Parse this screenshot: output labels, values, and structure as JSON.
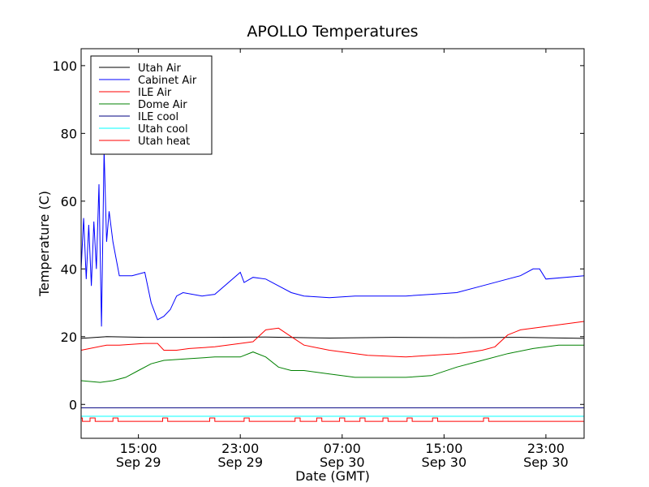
{
  "chart_data": {
    "type": "line",
    "title": "APOLLO Temperatures",
    "xlabel": "Date (GMT)",
    "ylabel": "Temperature (C)",
    "xlim": [
      10.5,
      50.0
    ],
    "ylim": [
      -10,
      105
    ],
    "yticks": [
      0,
      20,
      40,
      60,
      80,
      100
    ],
    "xticks": [
      {
        "x": 15,
        "time": "15:00",
        "date": "Sep 29"
      },
      {
        "x": 23,
        "time": "23:00",
        "date": "Sep 29"
      },
      {
        "x": 31,
        "time": "07:00",
        "date": "Sep 30"
      },
      {
        "x": 39,
        "time": "15:00",
        "date": "Sep 30"
      },
      {
        "x": 47,
        "time": "23:00",
        "date": "Sep 30"
      }
    ],
    "legend_position": "upper-left",
    "series": [
      {
        "name": "Utah Air",
        "color": "#000000",
        "x": [
          10.5,
          12.5,
          15.5,
          20,
          25,
          30,
          35,
          40,
          45,
          50
        ],
        "y": [
          19.5,
          20.0,
          19.8,
          19.8,
          19.9,
          19.6,
          19.8,
          19.7,
          19.8,
          19.5
        ]
      },
      {
        "name": "Cabinet Air",
        "color": "#0000ff",
        "x": [
          10.5,
          10.7,
          10.9,
          11.1,
          11.3,
          11.5,
          11.7,
          11.9,
          12.1,
          12.3,
          12.5,
          12.7,
          13.0,
          13.5,
          14.5,
          15.5,
          16.0,
          16.5,
          17.0,
          17.5,
          18.0,
          18.5,
          20.0,
          21.0,
          23.0,
          23.3,
          24.0,
          25.0,
          26.0,
          27.0,
          28.0,
          30.0,
          32.0,
          34.0,
          36.0,
          38.0,
          40.0,
          42.0,
          44.0,
          45.0,
          46.0,
          46.5,
          47.0,
          50.0
        ],
        "y": [
          40,
          55,
          37,
          53,
          35,
          54,
          40,
          65,
          23,
          75,
          48,
          57,
          48,
          38,
          38,
          39,
          30,
          25,
          26,
          28,
          32,
          33,
          32,
          32.5,
          39,
          36,
          37.5,
          37,
          35,
          33,
          32,
          31.5,
          32,
          32,
          32,
          32.5,
          33,
          35,
          37,
          38,
          40,
          40,
          37,
          38
        ]
      },
      {
        "name": "ILE Air",
        "color": "#ff0000",
        "x": [
          10.5,
          12.5,
          13.5,
          15.5,
          16.5,
          17.0,
          18.0,
          19.0,
          21.0,
          23.0,
          24.0,
          25.0,
          26.0,
          27.0,
          28.0,
          30.0,
          33.0,
          36.0,
          38.0,
          40.0,
          42.0,
          43.0,
          44.0,
          45.0,
          47.0,
          50.0
        ],
        "y": [
          16,
          17.5,
          17.5,
          18,
          18,
          16,
          16,
          16.5,
          17,
          18,
          18.5,
          22,
          22.5,
          20,
          17.5,
          16,
          14.5,
          14,
          14.5,
          15,
          16,
          17,
          20.5,
          22,
          23,
          24.5
        ]
      },
      {
        "name": "Dome Air",
        "color": "#008000",
        "x": [
          10.5,
          12.0,
          13.0,
          14.0,
          15.0,
          16.0,
          17.0,
          19.0,
          21.0,
          23.0,
          24.0,
          25.0,
          26.0,
          27.0,
          28.0,
          30.0,
          32.0,
          34.0,
          36.0,
          38.0,
          40.0,
          42.0,
          44.0,
          46.0,
          48.0,
          50.0
        ],
        "y": [
          7,
          6.5,
          7,
          8,
          10,
          12,
          13,
          13.5,
          14,
          14,
          15.5,
          14,
          11,
          10,
          10,
          9,
          8,
          8,
          8,
          8.5,
          11,
          13,
          15,
          16.5,
          17.5,
          17.5
        ]
      },
      {
        "name": "ILE cool",
        "color": "#000080",
        "x": [
          10.5,
          50.0
        ],
        "y": [
          -1,
          -1
        ]
      },
      {
        "name": "Utah cool",
        "color": "#00ffff",
        "x": [
          10.5,
          50.0
        ],
        "y": [
          -3.5,
          -3.5
        ]
      },
      {
        "name": "Utah heat",
        "color": "#ff0000",
        "base": -5,
        "high": -4,
        "pulses": [
          [
            10.5,
            10.6
          ],
          [
            11.2,
            11.6
          ],
          [
            13.0,
            13.4
          ],
          [
            16.9,
            17.3
          ],
          [
            20.6,
            21.0
          ],
          [
            23.3,
            23.7
          ],
          [
            27.3,
            27.7
          ],
          [
            29.0,
            29.4
          ],
          [
            30.8,
            31.2
          ],
          [
            32.4,
            32.8
          ],
          [
            34.2,
            34.6
          ],
          [
            36.1,
            36.5
          ],
          [
            38.1,
            38.5
          ],
          [
            42.1,
            42.5
          ]
        ]
      }
    ]
  }
}
